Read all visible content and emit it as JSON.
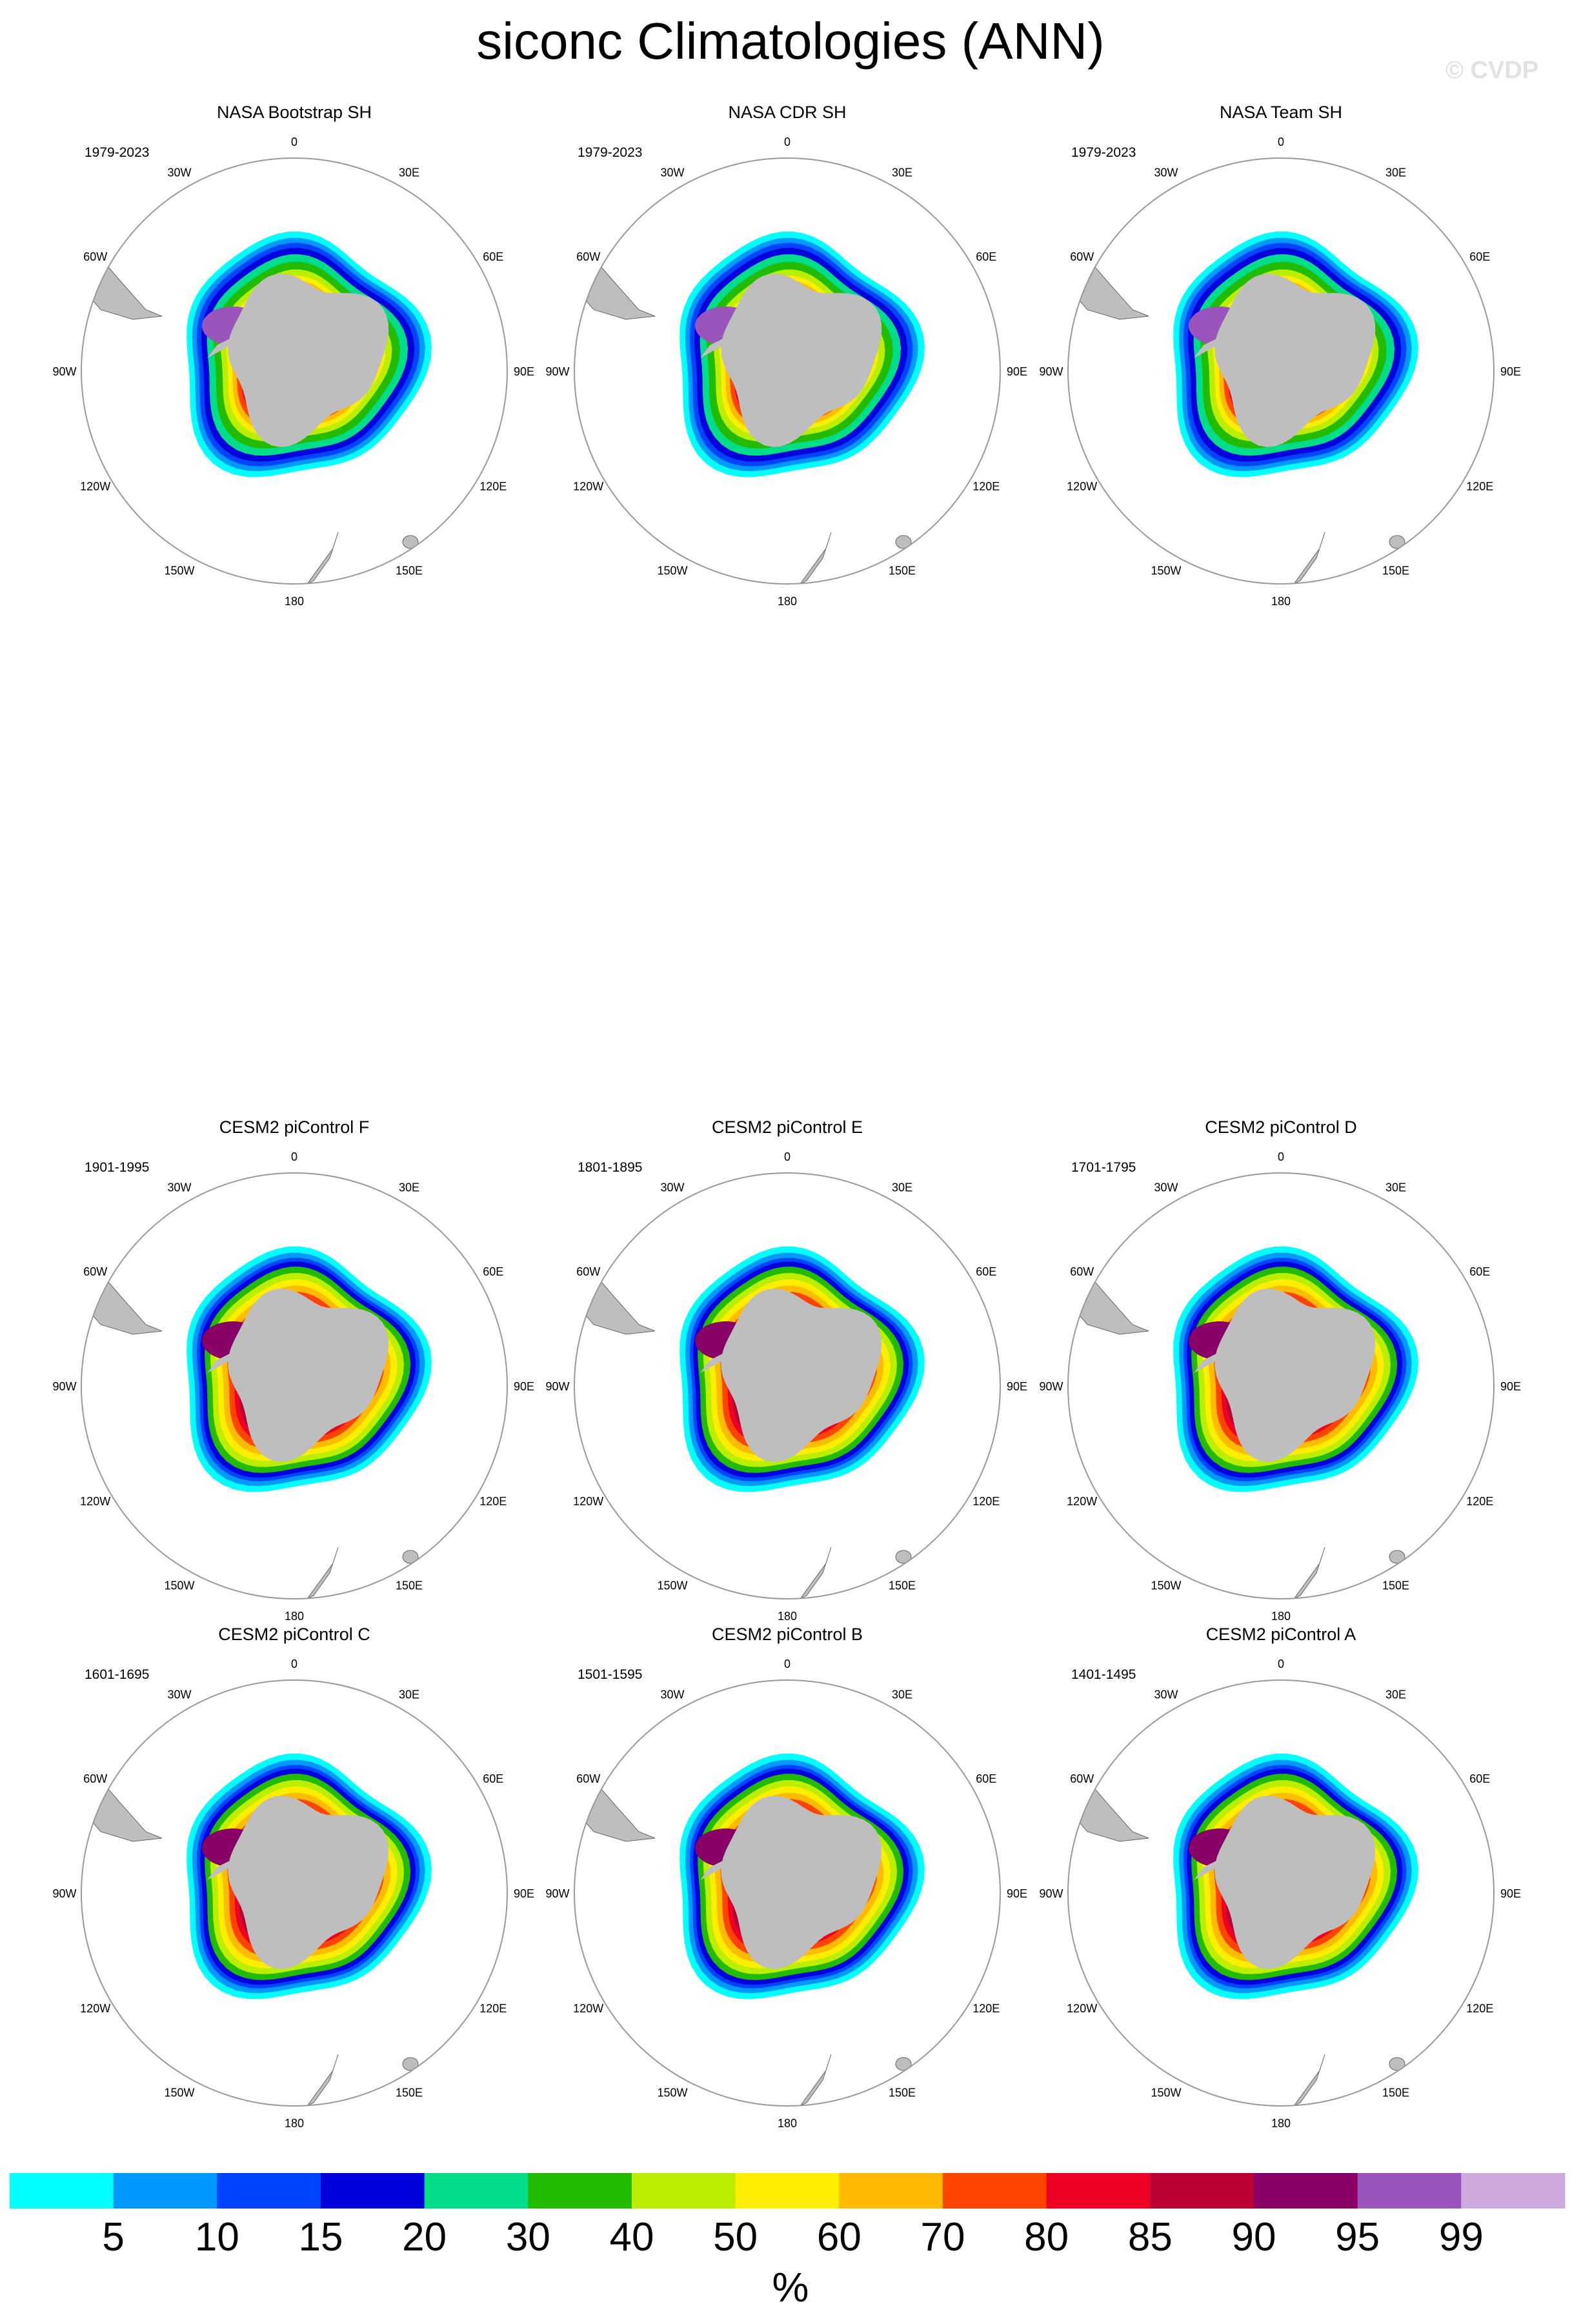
{
  "title": "siconc Climatologies (ANN)",
  "copyright": "© CVDP",
  "lon_labels": [
    "0",
    "30E",
    "60E",
    "90E",
    "120E",
    "150E",
    "180",
    "150W",
    "120W",
    "90W",
    "60W",
    "30W"
  ],
  "panels": [
    {
      "name": "NASA Bootstrap SH",
      "years": "1979-2023",
      "style": "obs"
    },
    {
      "name": "NASA CDR SH",
      "years": "1979-2023",
      "style": "obs"
    },
    {
      "name": "NASA Team SH",
      "years": "1979-2023",
      "style": "obs"
    },
    {
      "name": "CESM2 piControl F",
      "years": "1901-1995",
      "style": "model"
    },
    {
      "name": "CESM2 piControl E",
      "years": "1801-1895",
      "style": "model"
    },
    {
      "name": "CESM2 piControl D",
      "years": "1701-1795",
      "style": "model"
    },
    {
      "name": "CESM2 piControl C",
      "years": "1601-1695",
      "style": "model"
    },
    {
      "name": "CESM2 piControl B",
      "years": "1501-1595",
      "style": "model"
    },
    {
      "name": "CESM2 piControl A",
      "years": "1401-1495",
      "style": "model"
    }
  ],
  "colorbar": {
    "units": "%",
    "labels": [
      "5",
      "10",
      "15",
      "20",
      "30",
      "40",
      "50",
      "60",
      "70",
      "80",
      "85",
      "90",
      "95",
      "99"
    ],
    "colors": [
      "#00ffff",
      "#0099ff",
      "#0044ff",
      "#0000dd",
      "#00dd88",
      "#22bb00",
      "#bbee00",
      "#ffee00",
      "#ffbb00",
      "#ff4400",
      "#ee0022",
      "#bb0033",
      "#880066",
      "#9955bb",
      "#ccaadd"
    ]
  },
  "land_color": "#bebebe"
}
